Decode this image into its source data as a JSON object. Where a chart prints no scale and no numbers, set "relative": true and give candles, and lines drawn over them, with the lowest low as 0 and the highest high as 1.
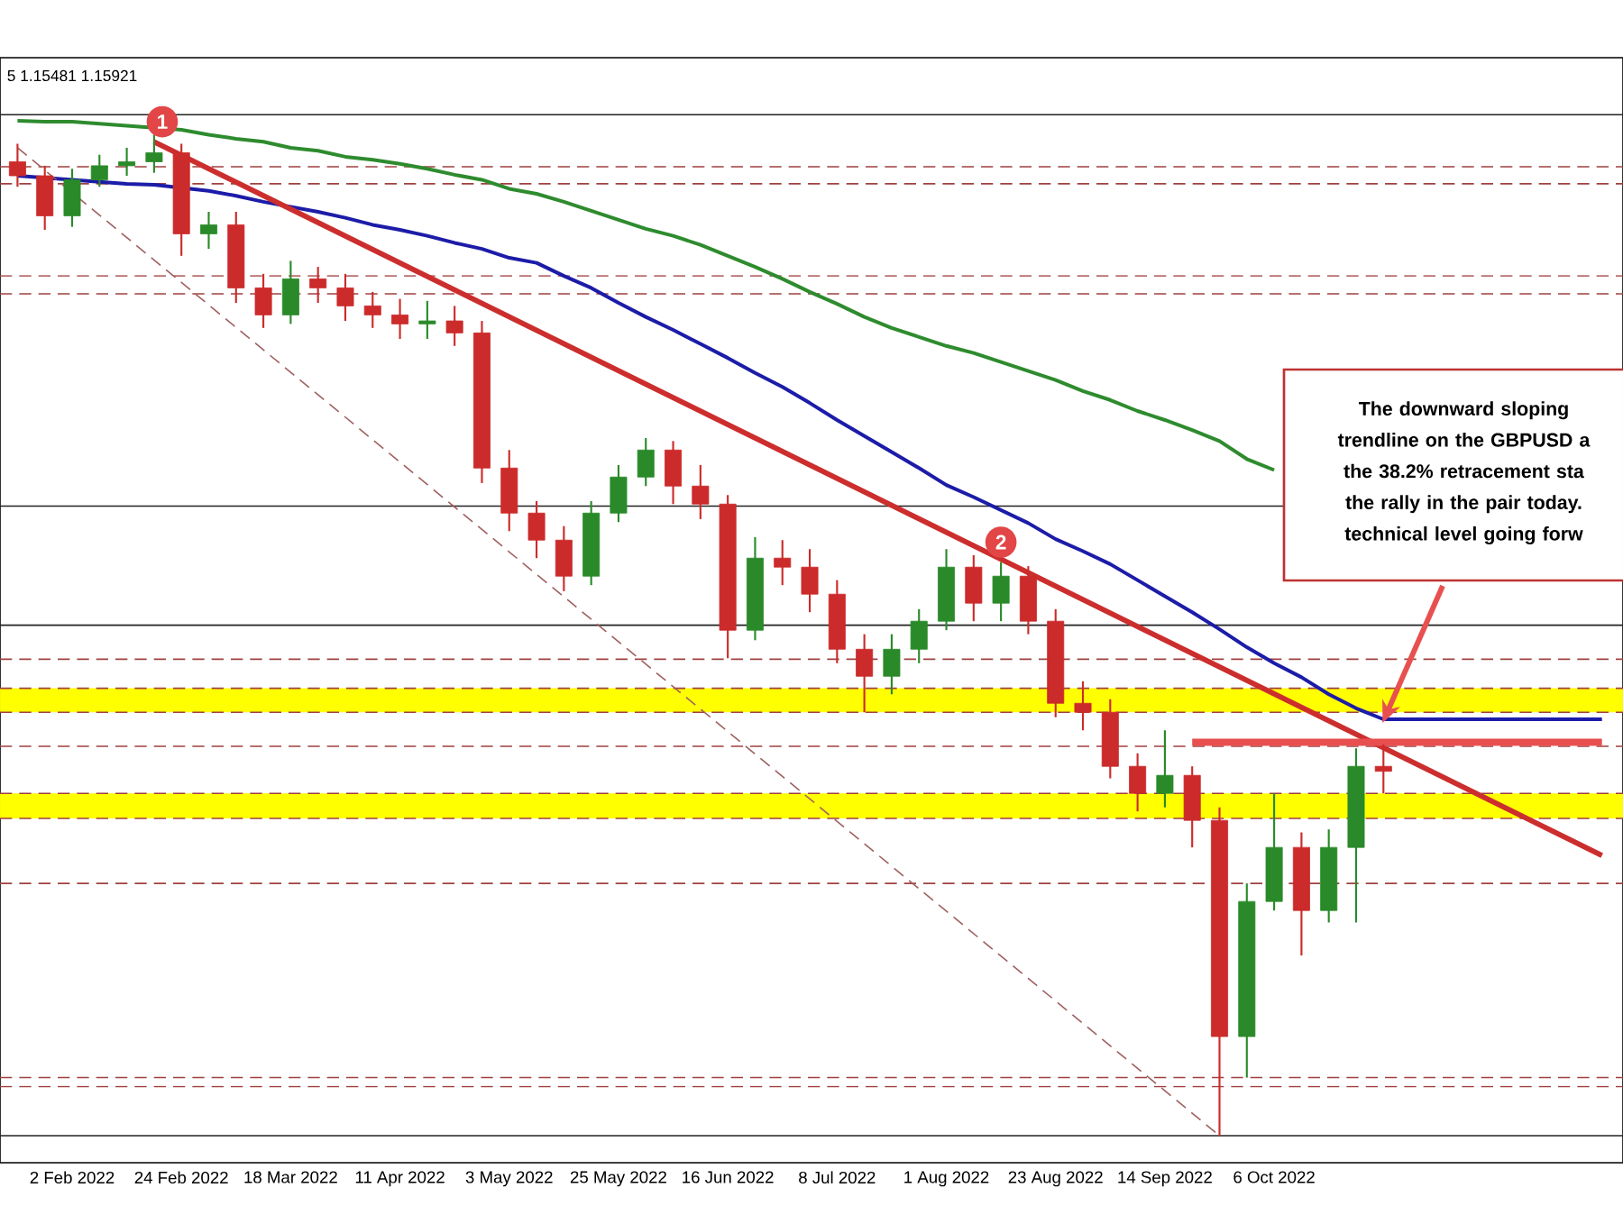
{
  "chart_data": {
    "type": "candlestick",
    "relative": true,
    "categories": [
      null,
      null,
      "2 Feb 2022",
      null,
      null,
      null,
      "24 Feb 2022",
      null,
      null,
      null,
      "18 Mar 2022",
      null,
      null,
      null,
      "11 Apr 2022",
      null,
      null,
      null,
      "3 May 2022",
      null,
      null,
      null,
      "25 May 2022",
      null,
      null,
      null,
      "16 Jun 2022",
      null,
      null,
      null,
      "8 Jul 2022",
      null,
      null,
      null,
      "1 Aug 2022",
      null,
      null,
      null,
      "23 Aug 2022",
      null,
      null,
      null,
      "14 Sep 2022",
      null,
      null,
      null,
      "6 Oct 2022",
      null,
      null,
      null,
      null,
      null,
      null,
      null,
      null,
      null,
      null,
      null,
      null
    ],
    "ohlc": [
      [
        0.973,
        0.991,
        0.948,
        0.959
      ],
      [
        0.959,
        0.969,
        0.905,
        0.919
      ],
      [
        0.919,
        0.966,
        0.908,
        0.955
      ],
      [
        0.955,
        0.98,
        0.948,
        0.969
      ],
      [
        0.969,
        0.987,
        0.959,
        0.973
      ],
      [
        0.973,
        1.0,
        0.962,
        0.982
      ],
      [
        0.982,
        0.991,
        0.879,
        0.901
      ],
      [
        0.901,
        0.923,
        0.886,
        0.91
      ],
      [
        0.91,
        0.923,
        0.832,
        0.847
      ],
      [
        0.847,
        0.861,
        0.807,
        0.82
      ],
      [
        0.82,
        0.874,
        0.811,
        0.856
      ],
      [
        0.856,
        0.868,
        0.832,
        0.847
      ],
      [
        0.847,
        0.861,
        0.814,
        0.829
      ],
      [
        0.829,
        0.843,
        0.807,
        0.82
      ],
      [
        0.82,
        0.836,
        0.796,
        0.811
      ],
      [
        0.811,
        0.834,
        0.796,
        0.814
      ],
      [
        0.814,
        0.829,
        0.789,
        0.802
      ],
      [
        0.802,
        0.814,
        0.652,
        0.667
      ],
      [
        0.667,
        0.685,
        0.604,
        0.622
      ],
      [
        0.622,
        0.634,
        0.577,
        0.595
      ],
      [
        0.595,
        0.609,
        0.544,
        0.559
      ],
      [
        0.559,
        0.634,
        0.55,
        0.622
      ],
      [
        0.622,
        0.67,
        0.613,
        0.658
      ],
      [
        0.658,
        0.697,
        0.649,
        0.685
      ],
      [
        0.685,
        0.694,
        0.631,
        0.649
      ],
      [
        0.649,
        0.67,
        0.616,
        0.631
      ],
      [
        0.631,
        0.64,
        0.477,
        0.505
      ],
      [
        0.505,
        0.598,
        0.495,
        0.577
      ],
      [
        0.577,
        0.595,
        0.55,
        0.568
      ],
      [
        0.568,
        0.586,
        0.523,
        0.541
      ],
      [
        0.541,
        0.555,
        0.472,
        0.486
      ],
      [
        0.486,
        0.501,
        0.423,
        0.459
      ],
      [
        0.459,
        0.501,
        0.441,
        0.486
      ],
      [
        0.486,
        0.526,
        0.472,
        0.514
      ],
      [
        0.514,
        0.586,
        0.505,
        0.568
      ],
      [
        0.568,
        0.58,
        0.514,
        0.532
      ],
      [
        0.532,
        0.573,
        0.514,
        0.559
      ],
      [
        0.559,
        0.569,
        0.501,
        0.514
      ],
      [
        0.514,
        0.526,
        0.418,
        0.432
      ],
      [
        0.432,
        0.454,
        0.405,
        0.423
      ],
      [
        0.423,
        0.436,
        0.357,
        0.369
      ],
      [
        0.369,
        0.382,
        0.324,
        0.342
      ],
      [
        0.342,
        0.405,
        0.328,
        0.36
      ],
      [
        0.36,
        0.369,
        0.288,
        0.315
      ],
      [
        0.315,
        0.328,
        0.0,
        0.099
      ],
      [
        0.099,
        0.252,
        0.058,
        0.234
      ],
      [
        0.234,
        0.342,
        0.225,
        0.288
      ],
      [
        0.288,
        0.303,
        0.18,
        0.225
      ],
      [
        0.225,
        0.306,
        0.213,
        0.288
      ],
      [
        0.288,
        0.387,
        0.213,
        0.369
      ],
      [
        0.369,
        0.391,
        0.342,
        0.364
      ],
      null,
      null,
      null,
      null,
      null,
      null,
      null,
      null
    ],
    "series": [
      {
        "type": "line",
        "color": "#2e8b2e",
        "values": [
          1.014,
          1.013,
          1.013,
          1.011,
          1.009,
          null,
          1.005,
          1.0,
          0.996,
          0.993,
          0.987,
          0.984,
          0.978,
          0.975,
          0.971,
          0.966,
          0.96,
          0.955,
          0.946,
          0.941,
          0.933,
          0.924,
          0.915,
          0.906,
          0.899,
          0.89,
          0.879,
          0.868,
          0.856,
          0.843,
          0.831,
          0.818,
          0.807,
          0.798,
          0.789,
          0.782,
          0.773,
          0.764,
          0.755,
          0.744,
          0.735,
          0.724,
          0.715,
          0.705,
          0.694,
          0.676,
          0.665,
          null,
          null,
          null,
          null,
          null,
          null,
          null,
          null,
          null,
          null,
          null,
          null
        ]
      },
      {
        "type": "line",
        "color": "#1c1ca8",
        "values": [
          0.959,
          null,
          0.955,
          0.953,
          0.951,
          0.95,
          null,
          0.944,
          0.939,
          0.933,
          0.928,
          0.923,
          0.917,
          0.91,
          0.905,
          0.899,
          0.892,
          0.886,
          0.877,
          0.872,
          0.859,
          0.847,
          0.832,
          0.818,
          0.805,
          0.791,
          0.777,
          0.762,
          0.748,
          0.732,
          0.715,
          0.699,
          0.683,
          0.667,
          0.65,
          0.638,
          0.625,
          0.612,
          0.596,
          0.584,
          0.571,
          0.555,
          0.539,
          0.523,
          0.506,
          0.488,
          0.472,
          0.458,
          0.441,
          0.427,
          0.416,
          0.416,
          0.416,
          0.416,
          0.416,
          0.416,
          0.416,
          0.416,
          0.416
        ]
      },
      {
        "type": "line",
        "color": "#cc2e2e",
        "values": [
          null,
          null,
          null,
          null,
          null,
          0.993,
          null,
          null,
          null,
          null,
          null,
          null,
          null,
          null,
          null,
          null,
          null,
          null,
          null,
          null,
          null,
          null,
          null,
          null,
          null,
          null,
          null,
          null,
          null,
          null,
          null,
          null,
          null,
          null,
          null,
          null,
          null,
          null,
          null,
          null,
          null,
          null,
          null,
          null,
          null,
          null,
          null,
          null,
          null,
          null,
          null,
          null,
          null,
          null,
          null,
          null,
          null,
          null,
          0.28
        ]
      },
      {
        "type": "line",
        "color": "#e85050",
        "values": [
          null,
          null,
          null,
          null,
          null,
          null,
          null,
          null,
          null,
          null,
          null,
          null,
          null,
          null,
          null,
          null,
          null,
          null,
          null,
          null,
          null,
          null,
          null,
          null,
          null,
          null,
          null,
          null,
          null,
          null,
          null,
          null,
          null,
          null,
          null,
          null,
          null,
          null,
          null,
          null,
          null,
          null,
          null,
          0.393,
          null,
          null,
          null,
          null,
          null,
          null,
          null,
          null,
          null,
          null,
          null,
          null,
          null,
          null,
          0.393
        ]
      },
      {
        "type": "line",
        "color": "#a06060",
        "line_style": "dashed",
        "values": [
          0.987,
          null,
          null,
          null,
          null,
          null,
          null,
          null,
          null,
          null,
          null,
          null,
          null,
          null,
          null,
          null,
          null,
          null,
          null,
          null,
          null,
          null,
          null,
          null,
          null,
          null,
          null,
          null,
          null,
          null,
          null,
          null,
          null,
          null,
          null,
          null,
          null,
          null,
          null,
          null,
          null,
          null,
          null,
          null,
          0.0,
          null,
          null,
          null,
          null,
          null,
          null,
          null,
          null,
          null,
          null,
          null,
          null,
          null,
          null
        ]
      }
    ],
    "bands": [
      {
        "axis": "y",
        "from": 0.423,
        "to": 0.447,
        "color": "#ffff00"
      },
      {
        "axis": "y",
        "from": 0.317,
        "to": 0.342,
        "color": "#ffff00"
      }
    ],
    "ref_lines": [
      {
        "axis": "y",
        "value": 1.02,
        "color": "#222222",
        "line_style": "solid"
      },
      {
        "axis": "y",
        "value": 0.968,
        "color": "#a04040",
        "line_style": "dashed"
      },
      {
        "axis": "y",
        "value": 0.951,
        "color": "#a04040",
        "line_style": "dashed"
      },
      {
        "axis": "y",
        "value": 0.859,
        "color": "#a04040",
        "line_style": "dashed"
      },
      {
        "axis": "y",
        "value": 0.841,
        "color": "#a04040",
        "line_style": "dashed"
      },
      {
        "axis": "y",
        "value": 0.629,
        "color": "#222222",
        "line_style": "solid"
      },
      {
        "axis": "y",
        "value": 0.51,
        "color": "#222222",
        "line_style": "solid"
      },
      {
        "axis": "y",
        "value": 0.476,
        "color": "#a04040",
        "line_style": "dashed"
      },
      {
        "axis": "y",
        "value": 0.447,
        "color": "#a04040",
        "line_style": "dashed"
      },
      {
        "axis": "y",
        "value": 0.423,
        "color": "#a04040",
        "line_style": "dashed"
      },
      {
        "axis": "y",
        "value": 0.389,
        "color": "#a04040",
        "line_style": "dashed"
      },
      {
        "axis": "y",
        "value": 0.342,
        "color": "#a04040",
        "line_style": "dashed"
      },
      {
        "axis": "y",
        "value": 0.317,
        "color": "#a04040",
        "line_style": "dashed"
      },
      {
        "axis": "y",
        "value": 0.252,
        "color": "#a04040",
        "line_style": "dashed"
      },
      {
        "axis": "y",
        "value": 0.058,
        "color": "#a04040",
        "line_style": "dashed"
      },
      {
        "axis": "y",
        "value": 0.049,
        "color": "#a04040",
        "line_style": "dashed"
      },
      {
        "axis": "y",
        "value": 0.0,
        "color": "#222222",
        "line_style": "solid"
      }
    ],
    "annotations": [
      "5 1.15481 1.15921",
      "1",
      "2",
      "The downward sloping",
      "trendline on the GBPUSD a",
      "the 38.2% retracement sta",
      "the rally in the pair today.",
      "technical level going forw"
    ]
  }
}
